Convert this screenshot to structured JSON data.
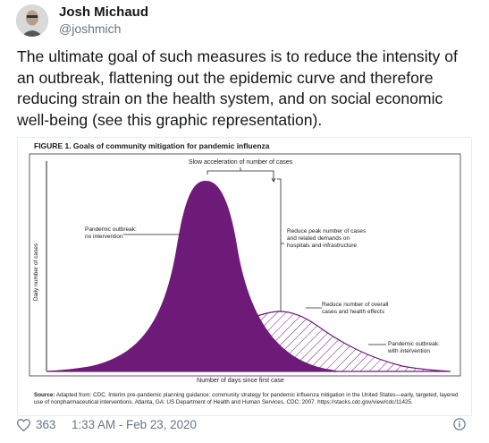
{
  "tweet": {
    "author_name": "Josh Michaud",
    "author_handle": "@joshmich",
    "text": "The ultimate goal of such measures is to reduce the intensity of an outbreak, flattening out the epidemic curve and therefore reducing strain on the health system, and on social economic well-being (see this graphic representation).",
    "likes": "363",
    "timestamp": "1:33 AM - Feb 23, 2020",
    "icons": {
      "avatar": "user-photo",
      "like": "heart-icon",
      "info": "info-icon"
    }
  },
  "figure": {
    "title": "FIGURE 1. Goals of community mitigation for pandemic influenza",
    "annotations": {
      "slow_acceleration": "Slow acceleration of number of cases",
      "no_intervention_line1": "Pandemic outbreak:",
      "no_intervention_line2": "no intervention",
      "reduce_peak_line1": "Reduce peak number of cases",
      "reduce_peak_line2": "and related demands on",
      "reduce_peak_line3": "hospitals and infrastructure",
      "reduce_overall_line1": "Reduce number of overall",
      "reduce_overall_line2": "cases and health effects",
      "with_intervention_line1": "Pandemic outbreak:",
      "with_intervention_line2": "with intervention"
    },
    "ylabel": "Daily number of cases",
    "xlabel": "Number of days since first case",
    "source_label": "Source:",
    "source_text": " Adapted from: CDC. Interim pre-pandemic planning guidance: community strategy for pandemic influenza mitigation in the United States—early, targeted, layered use of nonpharmaceutical interventions. Atlanta, GA: US Department of Health and Human Services, CDC; 2007. https://stacks.cdc.gov/view/cdc/11425.",
    "colors": {
      "no_intervention_fill": "#6e1a79",
      "with_intervention_hatch": "#6e1a79",
      "text": "#1a1a1a"
    }
  }
}
